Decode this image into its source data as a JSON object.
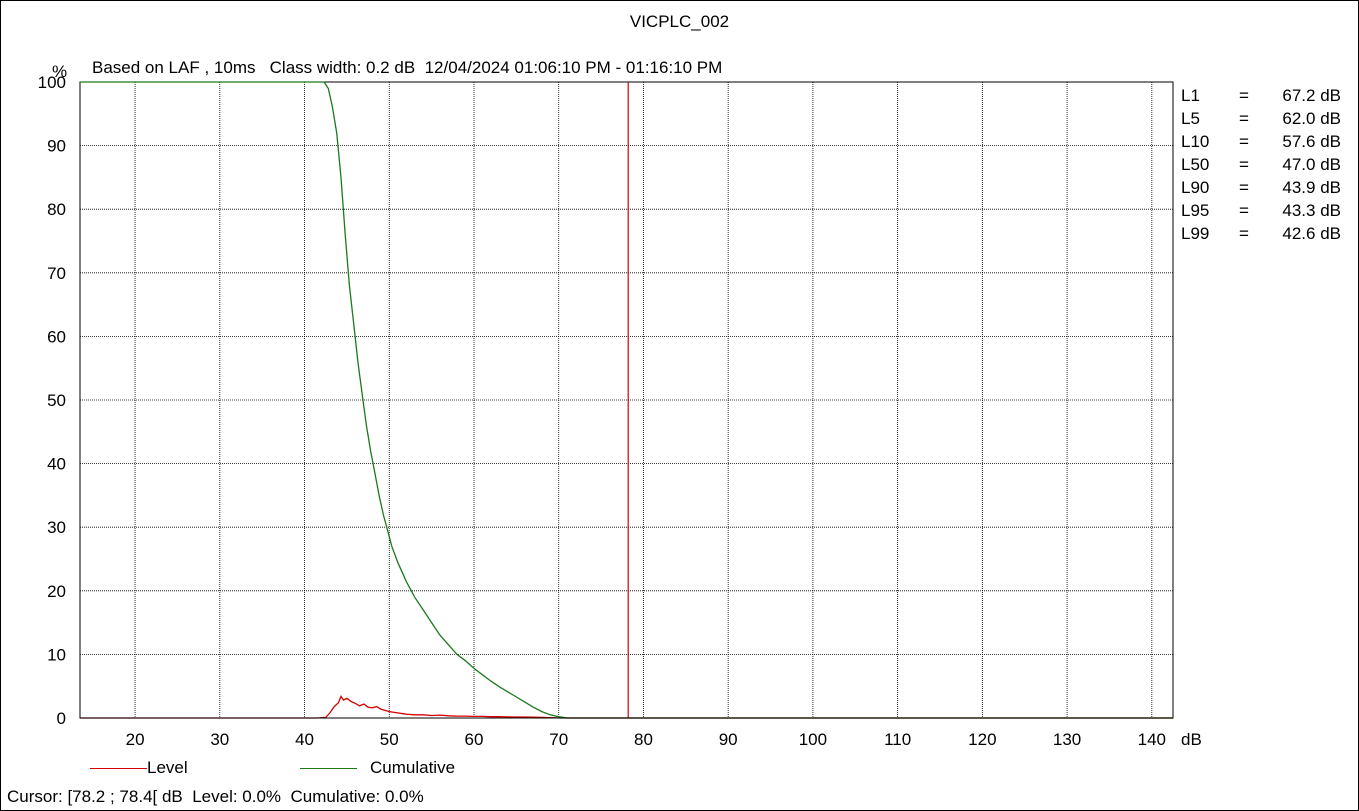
{
  "chart_data": {
    "type": "line",
    "title": "VICPLC_002",
    "subtitle": "Based on LAF , 10ms   Class width: 0.2 dB  12/04/2024 01:06:10 PM - 01:16:10 PM",
    "ylabel": "%",
    "xlabel": "dB",
    "xlim": [
      13.5,
      142.5
    ],
    "ylim": [
      0,
      100
    ],
    "x_ticks": [
      20,
      30,
      40,
      50,
      60,
      70,
      80,
      90,
      100,
      110,
      120,
      130,
      140
    ],
    "y_ticks": [
      0,
      10,
      20,
      30,
      40,
      50,
      60,
      70,
      80,
      90,
      100
    ],
    "grid": true,
    "cursor_x": 78.2,
    "series": [
      {
        "name": "Level",
        "color": "#d40000",
        "points": [
          [
            13.5,
            0
          ],
          [
            41.5,
            0
          ],
          [
            42.5,
            0.1
          ],
          [
            43.0,
            0.8
          ],
          [
            43.5,
            1.8
          ],
          [
            44.0,
            2.4
          ],
          [
            44.3,
            3.4
          ],
          [
            44.6,
            2.8
          ],
          [
            45.0,
            3.1
          ],
          [
            45.5,
            2.6
          ],
          [
            46.0,
            2.3
          ],
          [
            46.5,
            1.9
          ],
          [
            47.0,
            2.2
          ],
          [
            47.5,
            1.7
          ],
          [
            48.0,
            1.6
          ],
          [
            48.5,
            1.8
          ],
          [
            49.0,
            1.4
          ],
          [
            49.5,
            1.2
          ],
          [
            50.0,
            1.0
          ],
          [
            51.0,
            0.8
          ],
          [
            52.0,
            0.6
          ],
          [
            53.0,
            0.5
          ],
          [
            54.0,
            0.5
          ],
          [
            55.0,
            0.4
          ],
          [
            56.0,
            0.45
          ],
          [
            57.0,
            0.35
          ],
          [
            58.0,
            0.3
          ],
          [
            59.0,
            0.3
          ],
          [
            60.0,
            0.25
          ],
          [
            61.0,
            0.25
          ],
          [
            62.0,
            0.2
          ],
          [
            63.0,
            0.22
          ],
          [
            64.0,
            0.18
          ],
          [
            65.0,
            0.15
          ],
          [
            66.0,
            0.15
          ],
          [
            67.0,
            0.12
          ],
          [
            68.0,
            0.1
          ],
          [
            69.0,
            0.06
          ],
          [
            70.0,
            0.02
          ],
          [
            71.0,
            0
          ],
          [
            142.5,
            0
          ]
        ]
      },
      {
        "name": "Cumulative",
        "color": "#1a7a1a",
        "points": [
          [
            13.5,
            100
          ],
          [
            42.3,
            100
          ],
          [
            42.8,
            99
          ],
          [
            43.3,
            96
          ],
          [
            43.8,
            92
          ],
          [
            44.3,
            85
          ],
          [
            44.8,
            76
          ],
          [
            45.3,
            68
          ],
          [
            45.8,
            62
          ],
          [
            46.3,
            56
          ],
          [
            46.8,
            51
          ],
          [
            47.3,
            46
          ],
          [
            47.8,
            42
          ],
          [
            48.3,
            38.5
          ],
          [
            48.8,
            35
          ],
          [
            49.3,
            32
          ],
          [
            49.8,
            29.5
          ],
          [
            50.3,
            27
          ],
          [
            51.0,
            24.5
          ],
          [
            52.0,
            21.5
          ],
          [
            53.0,
            19
          ],
          [
            54.0,
            17
          ],
          [
            55.0,
            15
          ],
          [
            56.0,
            13
          ],
          [
            57.0,
            11.5
          ],
          [
            58.0,
            10
          ],
          [
            59.0,
            9
          ],
          [
            60.0,
            7.8
          ],
          [
            61.0,
            6.8
          ],
          [
            62.0,
            5.8
          ],
          [
            63.0,
            4.9
          ],
          [
            64.0,
            4.1
          ],
          [
            65.0,
            3.3
          ],
          [
            66.0,
            2.5
          ],
          [
            67.0,
            1.7
          ],
          [
            68.0,
            1.0
          ],
          [
            69.0,
            0.5
          ],
          [
            70.0,
            0.2
          ],
          [
            71.0,
            0
          ],
          [
            142.5,
            0
          ]
        ]
      }
    ]
  },
  "stats": [
    {
      "name": "L1",
      "eq": "=",
      "value": "67.2 dB"
    },
    {
      "name": "L5",
      "eq": "=",
      "value": "62.0 dB"
    },
    {
      "name": "L10",
      "eq": "=",
      "value": "57.6 dB"
    },
    {
      "name": "L50",
      "eq": "=",
      "value": "47.0 dB"
    },
    {
      "name": "L90",
      "eq": "=",
      "value": "43.9 dB"
    },
    {
      "name": "L95",
      "eq": "=",
      "value": "43.3 dB"
    },
    {
      "name": "L99",
      "eq": "=",
      "value": "42.6 dB"
    }
  ],
  "legend": {
    "level_label": "Level",
    "cumulative_label": "Cumulative",
    "level_color": "#d40000",
    "cumulative_color": "#1a7a1a"
  },
  "cursor_color": "#d40000",
  "cursor_readout": "Cursor: [78.2 ; 78.4[ dB  Level: 0.0%  Cumulative: 0.0%"
}
